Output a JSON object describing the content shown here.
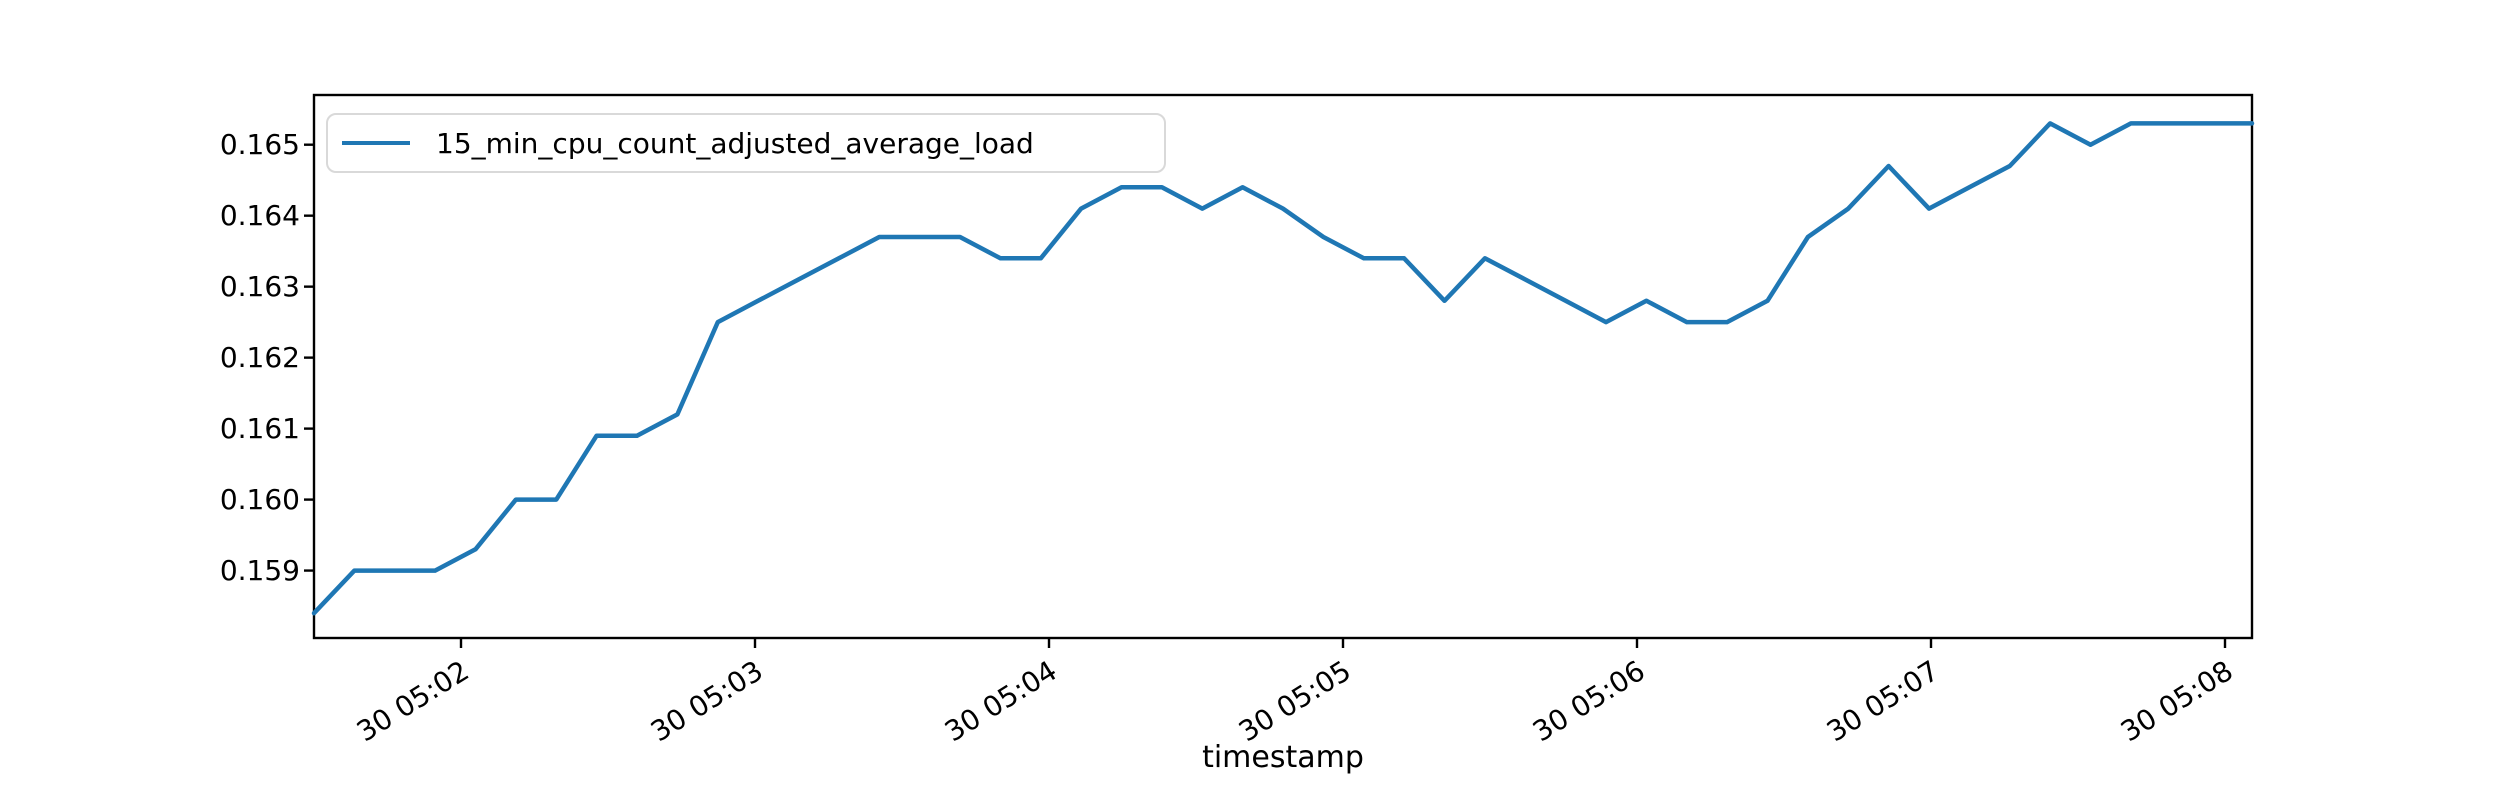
{
  "figure": {
    "background": "#ffffff"
  },
  "colors": {
    "series_line": "#1f77b4",
    "spine": "#000000",
    "tick": "#000000",
    "text": "#000000",
    "legend_border": "#d9d9d9",
    "legend_background": "#ffffff"
  },
  "legend": {
    "label": "15_min_cpu_count_adjusted_average_load",
    "position": "upper left"
  },
  "chart_data": {
    "type": "line",
    "title": "",
    "xlabel": "timestamp",
    "ylabel": "",
    "grid": false,
    "legend_position": "upper left",
    "ylim": [
      0.15805,
      0.1657
    ],
    "ytick_values": [
      0.159,
      0.16,
      0.161,
      0.162,
      0.163,
      0.164,
      0.165
    ],
    "ytick_labels": [
      "0.159",
      "0.160",
      "0.161",
      "0.162",
      "0.163",
      "0.164",
      "0.165"
    ],
    "xtick_labels": [
      "30 05:02",
      "30 05:03",
      "30 05:04",
      "30 05:05",
      "30 05:06",
      "30 05:07",
      "30 05:08"
    ],
    "xtick_label_format": "day hour:minute",
    "series": [
      {
        "name": "15_min_cpu_count_adjusted_average_load",
        "color": "#1f77b4",
        "x": [
          "05:01:30",
          "05:01:38",
          "05:01:46",
          "05:01:55",
          "05:02:03",
          "05:02:11",
          "05:02:19",
          "05:02:28",
          "05:02:36",
          "05:02:44",
          "05:02:52",
          "05:03:01",
          "05:03:09",
          "05:03:17",
          "05:03:25",
          "05:03:34",
          "05:03:42",
          "05:03:50",
          "05:03:58",
          "05:04:07",
          "05:04:15",
          "05:04:23",
          "05:04:31",
          "05:04:40",
          "05:04:48",
          "05:04:56",
          "05:05:04",
          "05:05:13",
          "05:05:21",
          "05:05:29",
          "05:05:37",
          "05:05:46",
          "05:05:54",
          "05:06:02",
          "05:06:10",
          "05:06:19",
          "05:06:27",
          "05:06:35",
          "05:06:43",
          "05:06:52",
          "05:07:00",
          "05:07:08",
          "05:07:16",
          "05:07:25",
          "05:07:33",
          "05:07:41",
          "05:07:49",
          "05:07:57",
          "05:08:06"
        ],
        "values": [
          0.1584,
          0.159,
          0.159,
          0.159,
          0.1593,
          0.16,
          0.16,
          0.1609,
          0.1609,
          0.1612,
          0.1625,
          0.1628,
          0.1631,
          0.1634,
          0.1637,
          0.1637,
          0.1637,
          0.1634,
          0.1634,
          0.1641,
          0.1644,
          0.1644,
          0.1641,
          0.1644,
          0.1641,
          0.1637,
          0.1634,
          0.1634,
          0.1628,
          0.1634,
          0.1631,
          0.1628,
          0.1625,
          0.1628,
          0.1625,
          0.1625,
          0.1628,
          0.1637,
          0.1641,
          0.1647,
          0.1641,
          0.1644,
          0.1647,
          0.1653,
          0.165,
          0.1653,
          0.1653,
          0.1653,
          0.1653
        ]
      }
    ]
  }
}
